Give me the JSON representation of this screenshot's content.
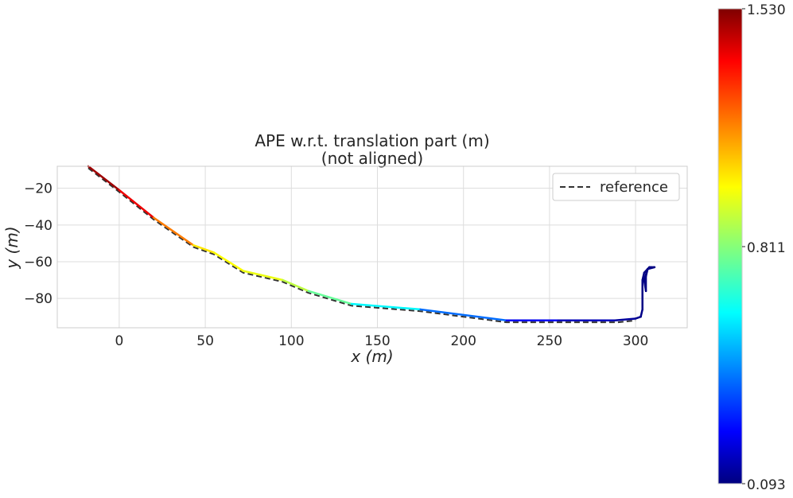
{
  "chart_data": {
    "type": "line",
    "title": "APE w.r.t. translation part (m)",
    "subtitle": "(not aligned)",
    "xlabel": "x (m)",
    "ylabel": "y (m)",
    "xlim": [
      -36,
      330
    ],
    "ylim": [
      -96,
      -8
    ],
    "xticks": [
      0,
      50,
      100,
      150,
      200,
      250,
      300
    ],
    "yticks": [
      -20,
      -40,
      -60,
      -80
    ],
    "grid": true,
    "legend": {
      "position": "top-right",
      "entries": [
        "reference"
      ]
    },
    "colorbar": {
      "min": 0.093,
      "max": 1.53,
      "tick_labels": [
        "1.530",
        "0.811",
        "0.093"
      ],
      "colormap": "jet"
    },
    "series": [
      {
        "name": "reference",
        "style": "dashed",
        "color": "#333333",
        "points": [
          [
            -18,
            -9
          ],
          [
            0,
            -22
          ],
          [
            20,
            -37
          ],
          [
            43,
            -52
          ],
          [
            55,
            -56
          ],
          [
            72,
            -66
          ],
          [
            95,
            -71
          ],
          [
            110,
            -77
          ],
          [
            135,
            -84
          ],
          [
            175,
            -87
          ],
          [
            225,
            -93
          ],
          [
            255,
            -93
          ],
          [
            290,
            -93
          ],
          [
            300,
            -92
          ]
        ]
      },
      {
        "style": "colormapped",
        "points": [
          [
            -18,
            -8
          ],
          [
            0,
            -21
          ],
          [
            20,
            -36
          ],
          [
            43,
            -51
          ],
          [
            55,
            -55
          ],
          [
            72,
            -65
          ],
          [
            95,
            -70
          ],
          [
            110,
            -76
          ],
          [
            135,
            -83
          ],
          [
            175,
            -86
          ],
          [
            225,
            -92
          ],
          [
            255,
            -92
          ],
          [
            288,
            -92
          ],
          [
            300,
            -91
          ],
          [
            303,
            -90
          ],
          [
            304,
            -86
          ],
          [
            304,
            -70
          ],
          [
            305,
            -66
          ],
          [
            308,
            -63
          ],
          [
            311,
            -63
          ],
          [
            307,
            -64
          ],
          [
            306,
            -68
          ],
          [
            306,
            -76
          ],
          [
            305,
            -70
          ],
          [
            307,
            -64
          ],
          [
            309,
            -63
          ]
        ],
        "errors": [
          1.52,
          1.45,
          1.3,
          1.05,
          1.0,
          0.98,
          0.95,
          0.85,
          0.7,
          0.55,
          0.3,
          0.2,
          0.15,
          0.12,
          0.11,
          0.1,
          0.1,
          0.1,
          0.1,
          0.1,
          0.1,
          0.1,
          0.1,
          0.1,
          0.1,
          0.1
        ]
      }
    ]
  }
}
